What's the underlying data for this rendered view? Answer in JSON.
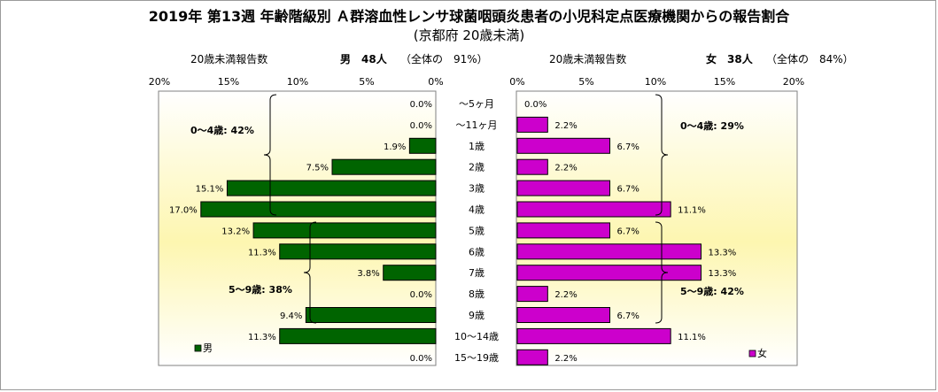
{
  "title": "2019年 第13週 年齢階級別 Ａ群溶血性レンサ球菌咽頭炎患者の小児科定点医療機関からの報告割合",
  "subtitle": "(京都府 20歳未満)",
  "left_header": {
    "caption": "20歳未満報告数",
    "count": "男　48人",
    "ratio": "（全体の　91%）"
  },
  "right_header": {
    "caption": "20歳未満報告数",
    "count": "女　38人",
    "ratio": "（全体の　84%）"
  },
  "chart_data": {
    "type": "bar",
    "orientation": "horizontal-butterfly",
    "categories": [
      "～5ヶ月",
      "～11ヶ月",
      "1歳",
      "2歳",
      "3歳",
      "4歳",
      "5歳",
      "6歳",
      "7歳",
      "8歳",
      "9歳",
      "10～14歳",
      "15～19歳"
    ],
    "series": [
      {
        "name": "男",
        "color": "#006400",
        "values": [
          0.0,
          0.0,
          1.9,
          7.5,
          15.1,
          17.0,
          13.2,
          11.3,
          3.8,
          0.0,
          9.4,
          11.3,
          0.0
        ],
        "labels": [
          "0.0%",
          "0.0%",
          "1.9%",
          "7.5%",
          "15.1%",
          "17.0%",
          "13.2%",
          "11.3%",
          "3.8%",
          "0.0%",
          "9.4%",
          "11.3%",
          "0.0%"
        ]
      },
      {
        "name": "女",
        "color": "#cc00cc",
        "values": [
          0.0,
          2.2,
          6.7,
          2.2,
          6.7,
          11.1,
          6.7,
          13.3,
          13.3,
          2.2,
          6.7,
          11.1,
          2.2
        ],
        "labels": [
          "0.0%",
          "2.2%",
          "6.7%",
          "2.2%",
          "6.7%",
          "11.1%",
          "6.7%",
          "13.3%",
          "13.3%",
          "2.2%",
          "6.7%",
          "11.1%",
          "2.2%"
        ]
      }
    ],
    "xlim": [
      0,
      20
    ],
    "left_ticks": [
      "20%",
      "15%",
      "10%",
      "5%",
      "0%"
    ],
    "right_ticks": [
      "0%",
      "5%",
      "10%",
      "15%",
      "20%"
    ],
    "group_annotations": {
      "male": [
        "0～4歳: 42%",
        "5～9歳: 38%"
      ],
      "female": [
        "0～4歳: 29%",
        "5～9歳: 42%"
      ]
    },
    "legend_placement": "bottom"
  }
}
